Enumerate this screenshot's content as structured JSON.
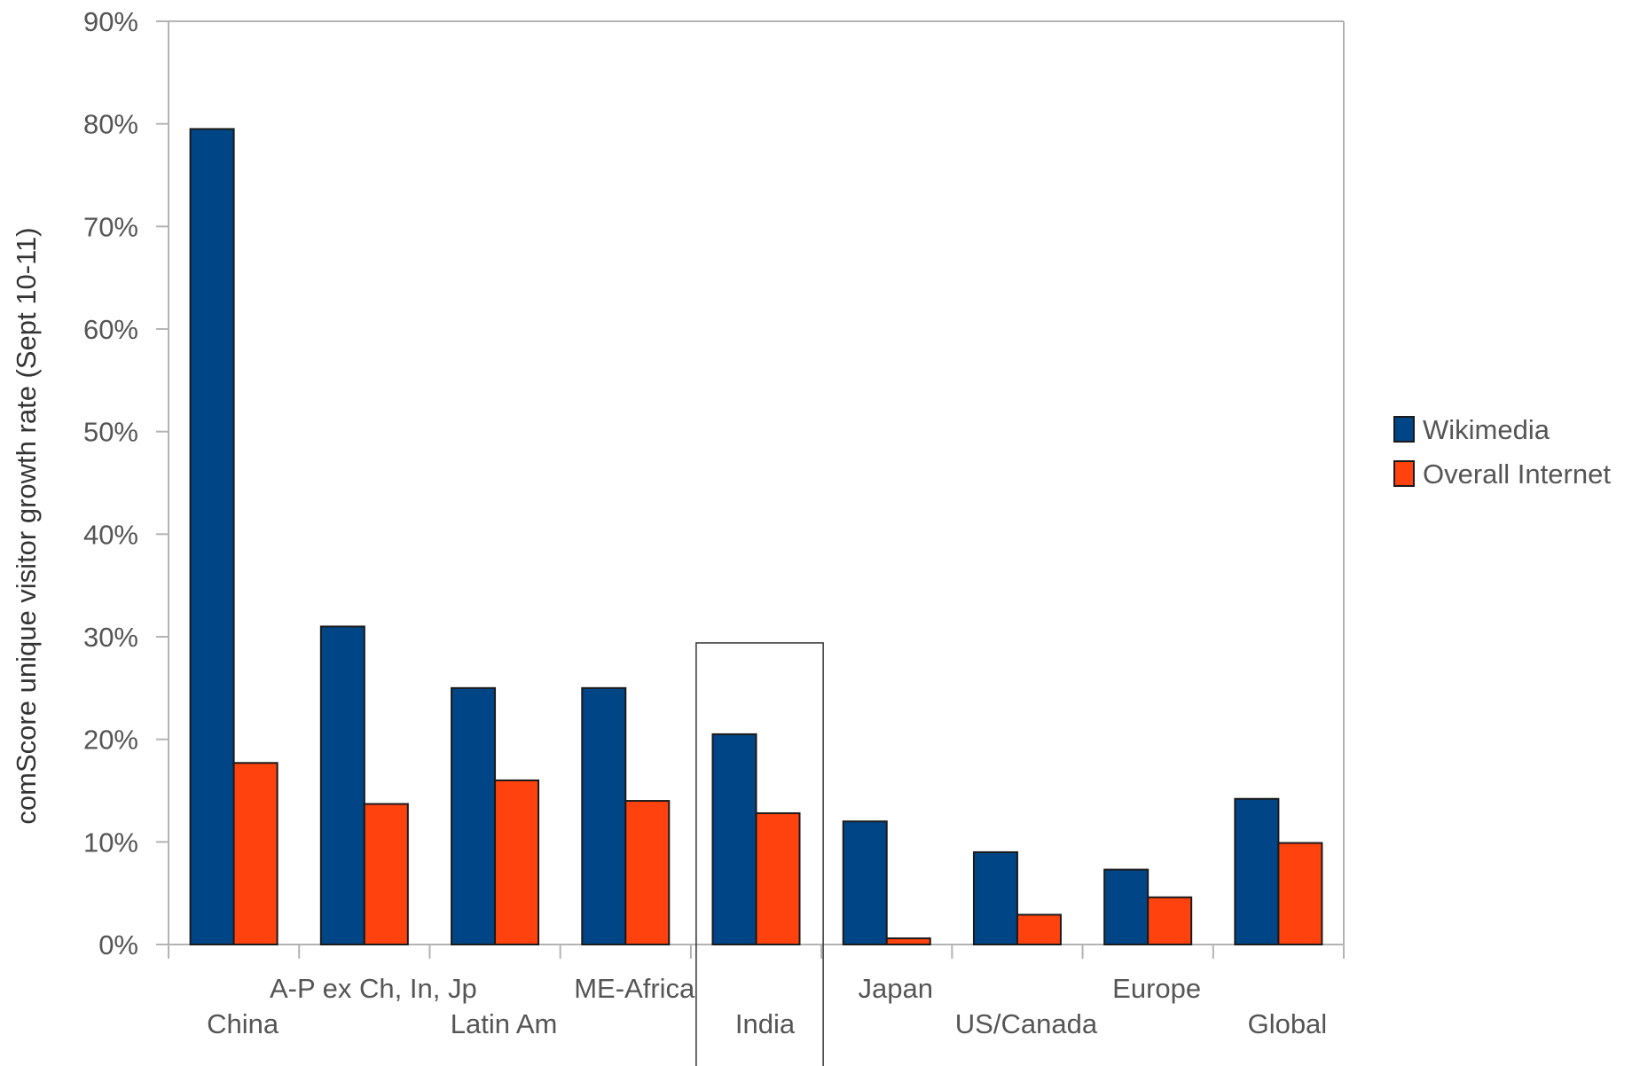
{
  "chart_data": {
    "type": "bar",
    "title": "",
    "xlabel": "",
    "ylabel": "comScore unique visitor growth rate (Sept 10-11)",
    "ylim": [
      0,
      90
    ],
    "yticks": [
      "0%",
      "10%",
      "20%",
      "30%",
      "40%",
      "50%",
      "60%",
      "70%",
      "80%",
      "90%"
    ],
    "categories": [
      "China",
      "A-P ex Ch, In, Jp",
      "Latin Am",
      "ME-Africa",
      "India",
      "Japan",
      "US/Canada",
      "Europe",
      "Global"
    ],
    "series": [
      {
        "name": "Wikimedia",
        "color": "#004586",
        "values": [
          79.5,
          31,
          25,
          25,
          20.5,
          12,
          9,
          7.3,
          14.2
        ]
      },
      {
        "name": "Overall Internet",
        "color": "#ff420e",
        "values": [
          17.7,
          13.7,
          16,
          14,
          12.8,
          0.6,
          2.9,
          4.6,
          9.9
        ]
      }
    ],
    "grid": false,
    "legend_position": "right",
    "highlighted_category": "India"
  }
}
